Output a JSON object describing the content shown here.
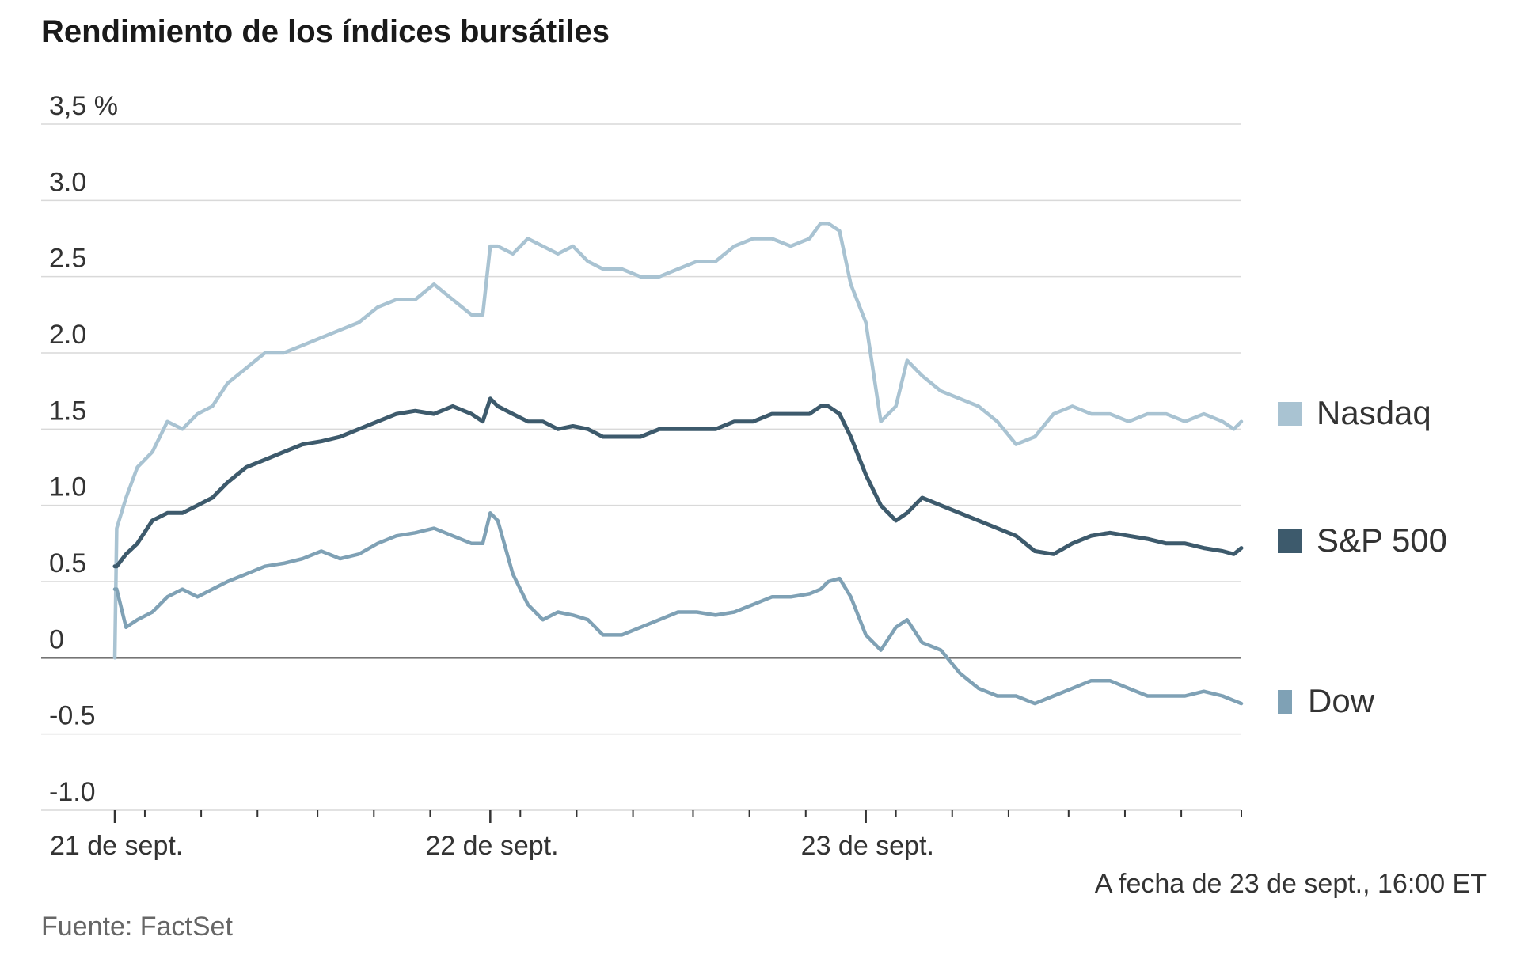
{
  "chart_data": {
    "type": "line",
    "title": "Rendimiento de los índices bursátiles",
    "ylim": [
      -1.0,
      3.5
    ],
    "y_ticks": [
      {
        "value": 3.5,
        "label": "3,5 %"
      },
      {
        "value": 3.0,
        "label": "3.0"
      },
      {
        "value": 2.5,
        "label": "2.5"
      },
      {
        "value": 2.0,
        "label": "2.0"
      },
      {
        "value": 1.5,
        "label": "1.5"
      },
      {
        "value": 1.0,
        "label": "1.0"
      },
      {
        "value": 0.5,
        "label": "0.5"
      },
      {
        "value": 0,
        "label": "0"
      },
      {
        "value": -0.5,
        "label": "-0.5"
      },
      {
        "value": -1.0,
        "label": "-1.0"
      }
    ],
    "x_domain": [
      0,
      3
    ],
    "x_ticks": [
      {
        "value": 0,
        "label": "21 de sept."
      },
      {
        "value": 1,
        "label": "22 de sept."
      },
      {
        "value": 2,
        "label": "23 de sept."
      }
    ],
    "x_minor_ticks": [
      0.08,
      0.23,
      0.38,
      0.54,
      0.69,
      0.84,
      1.08,
      1.23,
      1.38,
      1.54,
      1.69,
      1.84,
      2.08,
      2.23,
      2.38,
      2.54,
      2.69,
      2.84,
      3.0
    ],
    "grid": true,
    "legend_position": "right",
    "series": [
      {
        "name": "Nasdaq",
        "color": "#a9c3d2",
        "x": [
          0,
          0.005,
          0.03,
          0.06,
          0.1,
          0.14,
          0.18,
          0.22,
          0.26,
          0.3,
          0.35,
          0.4,
          0.45,
          0.5,
          0.55,
          0.6,
          0.65,
          0.7,
          0.75,
          0.8,
          0.85,
          0.9,
          0.95,
          0.98,
          1.0,
          1.02,
          1.06,
          1.1,
          1.14,
          1.18,
          1.22,
          1.26,
          1.3,
          1.35,
          1.4,
          1.45,
          1.5,
          1.55,
          1.6,
          1.65,
          1.7,
          1.75,
          1.8,
          1.85,
          1.88,
          1.9,
          1.93,
          1.96,
          2.0,
          2.04,
          2.08,
          2.11,
          2.15,
          2.2,
          2.25,
          2.3,
          2.35,
          2.4,
          2.45,
          2.5,
          2.55,
          2.6,
          2.65,
          2.7,
          2.75,
          2.8,
          2.85,
          2.9,
          2.95,
          2.98,
          3.0
        ],
        "y": [
          0,
          0.85,
          1.05,
          1.25,
          1.35,
          1.55,
          1.5,
          1.6,
          1.65,
          1.8,
          1.9,
          2.0,
          2.0,
          2.05,
          2.1,
          2.15,
          2.2,
          2.3,
          2.35,
          2.35,
          2.45,
          2.35,
          2.25,
          2.25,
          2.7,
          2.7,
          2.65,
          2.75,
          2.7,
          2.65,
          2.7,
          2.6,
          2.55,
          2.55,
          2.5,
          2.5,
          2.55,
          2.6,
          2.6,
          2.7,
          2.75,
          2.75,
          2.7,
          2.75,
          2.85,
          2.85,
          2.8,
          2.45,
          2.2,
          1.55,
          1.65,
          1.95,
          1.85,
          1.75,
          1.7,
          1.65,
          1.55,
          1.4,
          1.45,
          1.6,
          1.65,
          1.6,
          1.6,
          1.55,
          1.6,
          1.6,
          1.55,
          1.6,
          1.55,
          1.5,
          1.55
        ]
      },
      {
        "name": "S&P 500",
        "color": "#3d5a6c",
        "x": [
          0,
          0.005,
          0.03,
          0.06,
          0.1,
          0.14,
          0.18,
          0.22,
          0.26,
          0.3,
          0.35,
          0.4,
          0.45,
          0.5,
          0.55,
          0.6,
          0.65,
          0.7,
          0.75,
          0.8,
          0.85,
          0.9,
          0.95,
          0.98,
          1.0,
          1.02,
          1.06,
          1.1,
          1.14,
          1.18,
          1.22,
          1.26,
          1.3,
          1.35,
          1.4,
          1.45,
          1.5,
          1.55,
          1.6,
          1.65,
          1.7,
          1.75,
          1.8,
          1.85,
          1.88,
          1.9,
          1.93,
          1.96,
          2.0,
          2.04,
          2.08,
          2.11,
          2.15,
          2.2,
          2.25,
          2.3,
          2.35,
          2.4,
          2.45,
          2.5,
          2.55,
          2.6,
          2.65,
          2.7,
          2.75,
          2.8,
          2.85,
          2.9,
          2.95,
          2.98,
          3.0
        ],
        "y": [
          0.6,
          0.6,
          0.68,
          0.75,
          0.9,
          0.95,
          0.95,
          1.0,
          1.05,
          1.15,
          1.25,
          1.3,
          1.35,
          1.4,
          1.42,
          1.45,
          1.5,
          1.55,
          1.6,
          1.62,
          1.6,
          1.65,
          1.6,
          1.55,
          1.7,
          1.65,
          1.6,
          1.55,
          1.55,
          1.5,
          1.52,
          1.5,
          1.45,
          1.45,
          1.45,
          1.5,
          1.5,
          1.5,
          1.5,
          1.55,
          1.55,
          1.6,
          1.6,
          1.6,
          1.65,
          1.65,
          1.6,
          1.45,
          1.2,
          1.0,
          0.9,
          0.95,
          1.05,
          1.0,
          0.95,
          0.9,
          0.85,
          0.8,
          0.7,
          0.68,
          0.75,
          0.8,
          0.82,
          0.8,
          0.78,
          0.75,
          0.75,
          0.72,
          0.7,
          0.68,
          0.72
        ]
      },
      {
        "name": "Dow",
        "color": "#7fa1b5",
        "x": [
          0,
          0.005,
          0.03,
          0.06,
          0.1,
          0.14,
          0.18,
          0.22,
          0.26,
          0.3,
          0.35,
          0.4,
          0.45,
          0.5,
          0.55,
          0.6,
          0.65,
          0.7,
          0.75,
          0.8,
          0.85,
          0.9,
          0.95,
          0.98,
          1.0,
          1.02,
          1.06,
          1.1,
          1.14,
          1.18,
          1.22,
          1.26,
          1.3,
          1.35,
          1.4,
          1.45,
          1.5,
          1.55,
          1.6,
          1.65,
          1.7,
          1.75,
          1.8,
          1.85,
          1.88,
          1.9,
          1.93,
          1.96,
          2.0,
          2.04,
          2.08,
          2.11,
          2.15,
          2.2,
          2.25,
          2.3,
          2.35,
          2.4,
          2.45,
          2.5,
          2.55,
          2.6,
          2.65,
          2.7,
          2.75,
          2.8,
          2.85,
          2.9,
          2.95,
          2.98,
          3.0
        ],
        "y": [
          0.45,
          0.45,
          0.2,
          0.25,
          0.3,
          0.4,
          0.45,
          0.4,
          0.45,
          0.5,
          0.55,
          0.6,
          0.62,
          0.65,
          0.7,
          0.65,
          0.68,
          0.75,
          0.8,
          0.82,
          0.85,
          0.8,
          0.75,
          0.75,
          0.95,
          0.9,
          0.55,
          0.35,
          0.25,
          0.3,
          0.28,
          0.25,
          0.15,
          0.15,
          0.2,
          0.25,
          0.3,
          0.3,
          0.28,
          0.3,
          0.35,
          0.4,
          0.4,
          0.42,
          0.45,
          0.5,
          0.52,
          0.4,
          0.15,
          0.05,
          0.2,
          0.25,
          0.1,
          0.05,
          -0.1,
          -0.2,
          -0.25,
          -0.25,
          -0.3,
          -0.25,
          -0.2,
          -0.15,
          -0.15,
          -0.2,
          -0.25,
          -0.25,
          -0.25,
          -0.22,
          -0.25,
          -0.28,
          -0.3
        ]
      }
    ]
  },
  "note": "A fecha de 23 de sept., 16:00 ET",
  "source": "Fuente: FactSet"
}
